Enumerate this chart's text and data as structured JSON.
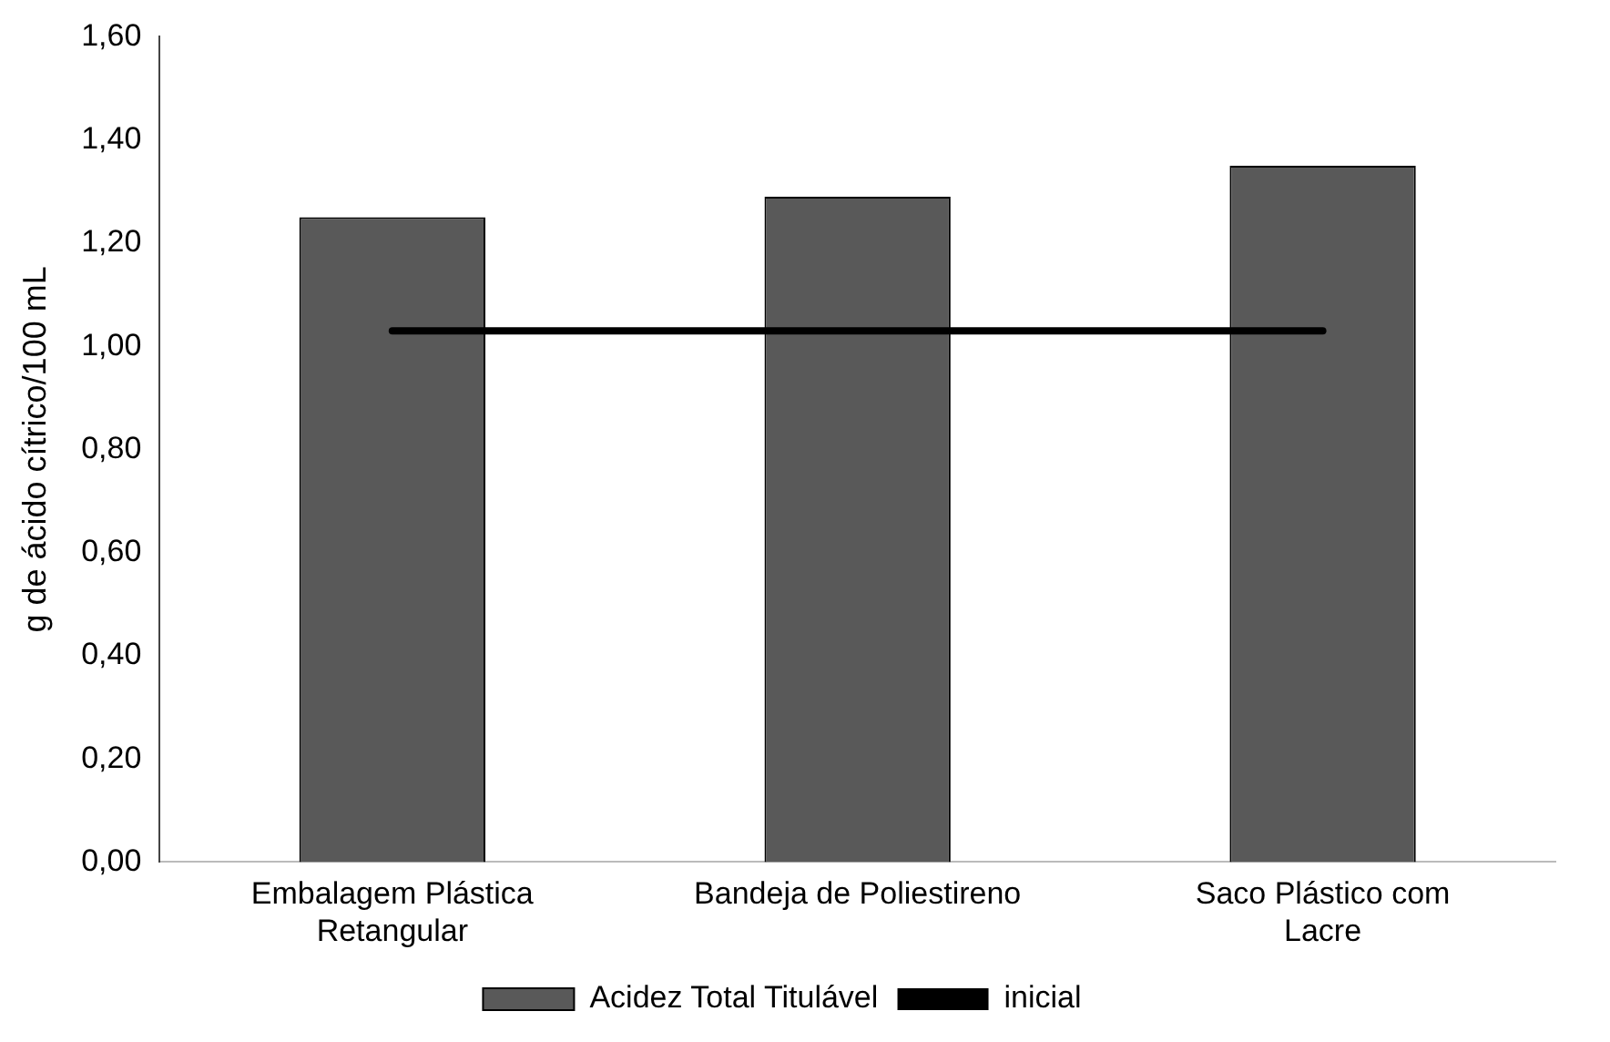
{
  "chart_data": {
    "type": "bar",
    "ylabel": "g de ácido cítrico/100 mL",
    "categories": [
      "Embalagem Plástica Retangular",
      "Bandeja de Poliestireno",
      "Saco Plástico com Lacre"
    ],
    "series": [
      {
        "name": "Acidez Total Titulável",
        "color": "#595959",
        "values": [
          1.25,
          1.29,
          1.35
        ]
      },
      {
        "name": "inicial",
        "type": "line",
        "color": "#000000",
        "values": [
          1.03,
          1.03,
          1.03
        ]
      }
    ],
    "ylim": [
      0,
      1.6
    ],
    "yticks": [
      {
        "value": 0,
        "label": "0,00"
      },
      {
        "value": 0.2,
        "label": "0,20"
      },
      {
        "value": 0.4,
        "label": "0,40"
      },
      {
        "value": 0.6,
        "label": "0,60"
      },
      {
        "value": 0.8,
        "label": "0,80"
      },
      {
        "value": 1,
        "label": "1,00"
      },
      {
        "value": 1.2,
        "label": "1,20"
      },
      {
        "value": 1.4,
        "label": "1,40"
      },
      {
        "value": 1.6,
        "label": "1,60"
      }
    ],
    "grid": false,
    "legend": "bottom",
    "marker": "none"
  }
}
